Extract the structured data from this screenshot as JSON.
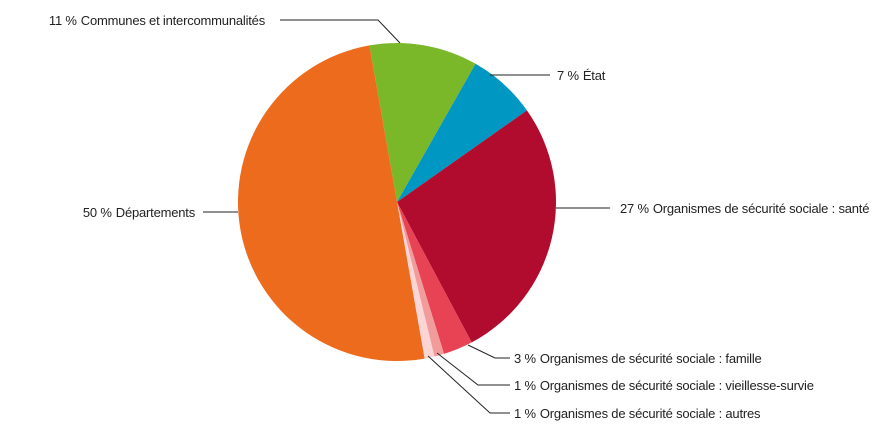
{
  "chart_data": {
    "type": "pie",
    "categories": [
      "Communes et intercommunalités",
      "État",
      "Organismes de sécurité sociale : santé",
      "Organismes de sécurité sociale : famille",
      "Organismes de sécurité sociale : vieillesse-survie",
      "Organismes de sécurité sociale : autres",
      "Départements"
    ],
    "values": [
      11,
      7,
      27,
      3,
      1,
      1,
      50
    ],
    "value_labels": [
      "11 %",
      "7 %",
      "27 %",
      "3 %",
      "1 %",
      "1 %",
      "50 %"
    ],
    "colors": [
      "#7ab829",
      "#0098c3",
      "#b10c2e",
      "#e84355",
      "#f29b9b",
      "#fbd5d5",
      "#ed6b1c"
    ]
  }
}
